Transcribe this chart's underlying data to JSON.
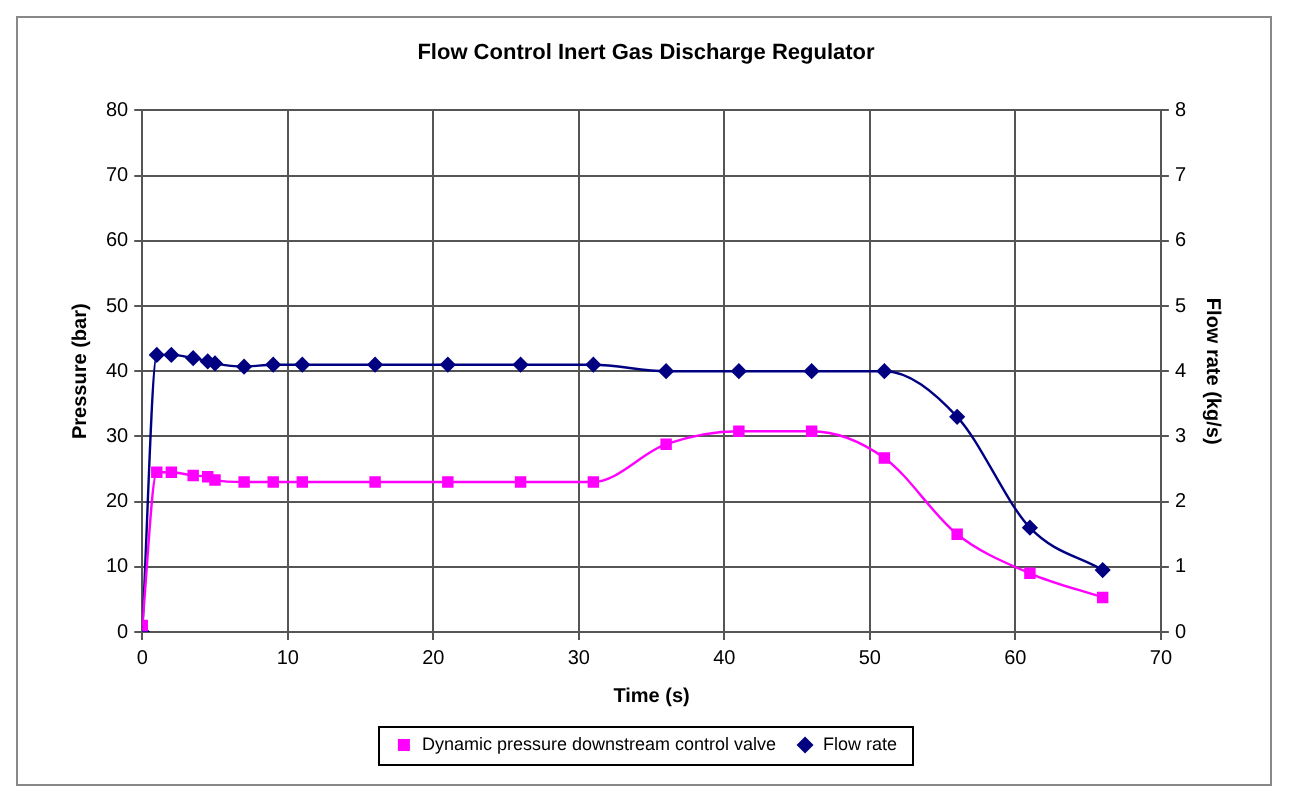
{
  "chart_data": {
    "type": "line",
    "title": "Flow Control Inert Gas Discharge Regulator",
    "xlabel": "Time (s)",
    "ylabel": "Pressure (bar)",
    "y2label": "Flow rate (kg/s)",
    "x": [
      0,
      1,
      2,
      3.5,
      4.5,
      5,
      7,
      9,
      11,
      16,
      21,
      26,
      31,
      36,
      41,
      46,
      51,
      56,
      61,
      66
    ],
    "series": [
      {
        "name": "Dynamic pressure downstream control valve",
        "color": "#ff00ff",
        "marker": "square",
        "values": [
          1,
          24.5,
          24.5,
          24,
          23.8,
          23.3,
          23,
          23,
          23,
          23,
          23,
          23,
          23,
          28.8,
          30.8,
          30.8,
          26.7,
          15,
          9,
          5.3
        ]
      },
      {
        "name": "Flow rate",
        "color": "#000080",
        "marker": "diamond",
        "axis": "y2",
        "values": [
          0,
          4.25,
          4.25,
          4.2,
          4.15,
          4.12,
          4.07,
          4.1,
          4.1,
          4.1,
          4.1,
          4.1,
          4.1,
          4.0,
          4.0,
          4.0,
          4.0,
          3.3,
          1.6,
          0.95
        ]
      }
    ],
    "xlim": [
      0,
      70
    ],
    "xticks": [
      0,
      10,
      20,
      30,
      40,
      50,
      60,
      70
    ],
    "ylim": [
      0,
      80
    ],
    "yticks": [
      0,
      10,
      20,
      30,
      40,
      50,
      60,
      70,
      80
    ],
    "y2lim": [
      0,
      8
    ],
    "y2ticks": [
      0,
      1,
      2,
      3,
      4,
      5,
      6,
      7,
      8
    ],
    "grid": true,
    "legend": "bottom"
  }
}
